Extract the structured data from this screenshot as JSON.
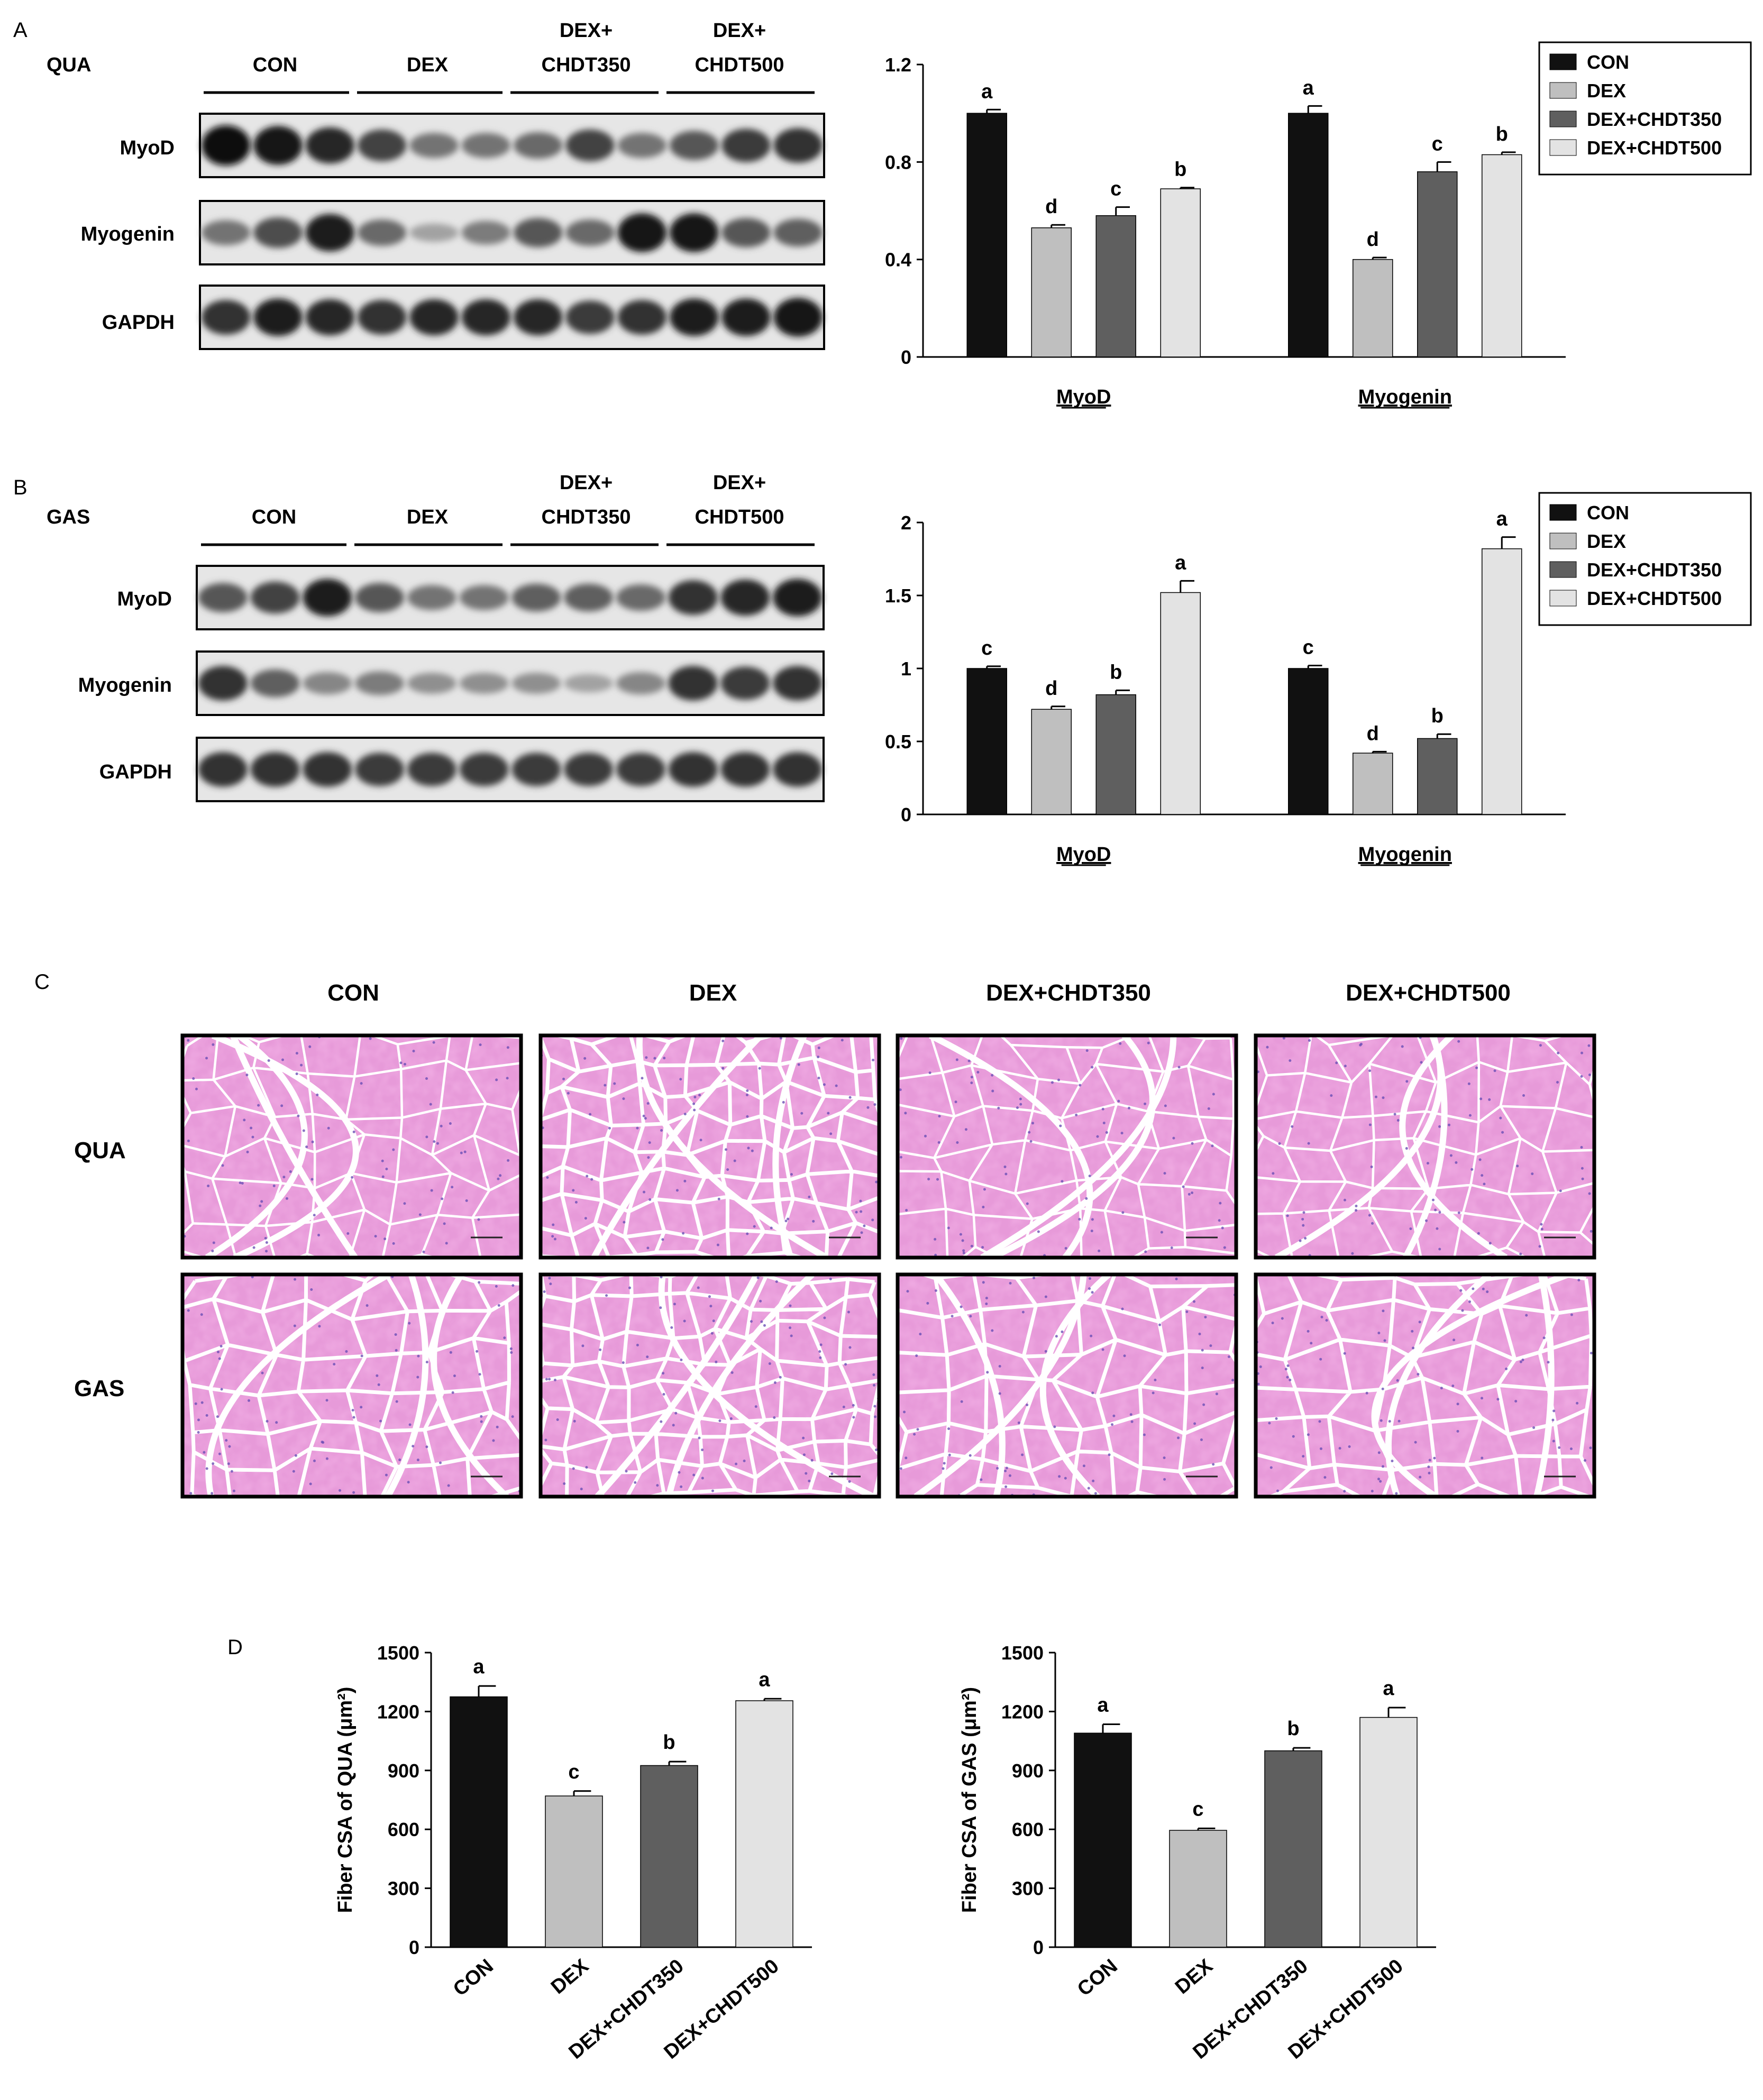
{
  "panels": {
    "A": {
      "letter": "A",
      "tissue": "QUA",
      "groups": [
        {
          "line1": "",
          "line2": "CON"
        },
        {
          "line1": "",
          "line2": "DEX"
        },
        {
          "line1": "DEX+",
          "line2": "CHDT350"
        },
        {
          "line1": "DEX+",
          "line2": "CHDT500"
        }
      ],
      "blots": [
        {
          "label": "MyoD",
          "intensities": [
            1.0,
            0.95,
            0.85,
            0.7,
            0.45,
            0.45,
            0.5,
            0.7,
            0.45,
            0.6,
            0.75,
            0.8
          ]
        },
        {
          "label": "Myogenin",
          "intensities": [
            0.45,
            0.65,
            0.9,
            0.5,
            0.2,
            0.4,
            0.6,
            0.5,
            0.95,
            0.95,
            0.6,
            0.55
          ]
        },
        {
          "label": "GAPDH",
          "intensities": [
            0.8,
            0.9,
            0.85,
            0.8,
            0.85,
            0.85,
            0.85,
            0.75,
            0.8,
            0.9,
            0.9,
            0.95
          ]
        }
      ]
    },
    "B": {
      "letter": "B",
      "tissue": "GAS",
      "groups": [
        {
          "line1": "",
          "line2": "CON"
        },
        {
          "line1": "",
          "line2": "DEX"
        },
        {
          "line1": "DEX+",
          "line2": "CHDT350"
        },
        {
          "line1": "DEX+",
          "line2": "CHDT500"
        }
      ],
      "blots": [
        {
          "label": "MyoD",
          "intensities": [
            0.6,
            0.7,
            0.9,
            0.6,
            0.45,
            0.45,
            0.55,
            0.55,
            0.5,
            0.8,
            0.85,
            0.9
          ]
        },
        {
          "label": "Myogenin",
          "intensities": [
            0.8,
            0.55,
            0.35,
            0.4,
            0.3,
            0.3,
            0.3,
            0.2,
            0.35,
            0.8,
            0.75,
            0.8
          ]
        },
        {
          "label": "GAPDH",
          "intensities": [
            0.8,
            0.8,
            0.8,
            0.75,
            0.75,
            0.75,
            0.75,
            0.75,
            0.75,
            0.8,
            0.8,
            0.8
          ]
        }
      ]
    },
    "C": {
      "letter": "C",
      "columns": [
        "CON",
        "DEX",
        "DEX+CHDT350",
        "DEX+CHDT500"
      ],
      "rows": [
        "QUA",
        "GAS"
      ]
    },
    "D": {
      "letter": "D"
    }
  },
  "legend_series": [
    "CON",
    "DEX",
    "DEX+CHDT350",
    "DEX+CHDT500"
  ],
  "colors": {
    "CON": "#111111",
    "DEX": "#bfbfbf",
    "DEX+CHDT350": "#5f5f5f",
    "DEX+CHDT500": "#e3e3e3",
    "tissue_bg": "#e79ad9",
    "tissue_septa": "#ffffff",
    "nuclei": "#6a4fb5"
  },
  "chart_data": [
    {
      "type": "bar",
      "panel": "A",
      "categories": [
        "MyoD",
        "Myogenin"
      ],
      "ylim": [
        0,
        1.2
      ],
      "yticks": [
        "0",
        "0.4",
        "0.8",
        "1.2"
      ],
      "series": [
        {
          "name": "CON",
          "values": [
            1.0,
            1.0
          ],
          "errors": [
            0.015,
            0.03
          ],
          "letters": [
            "a",
            "a"
          ]
        },
        {
          "name": "DEX",
          "values": [
            0.53,
            0.4
          ],
          "errors": [
            0.012,
            0.008
          ],
          "letters": [
            "d",
            "d"
          ]
        },
        {
          "name": "DEX+CHDT350",
          "values": [
            0.58,
            0.76
          ],
          "errors": [
            0.035,
            0.04
          ],
          "letters": [
            "c",
            "c"
          ]
        },
        {
          "name": "DEX+CHDT500",
          "values": [
            0.69,
            0.83
          ],
          "errors": [
            0.005,
            0.01
          ],
          "letters": [
            "b",
            "b"
          ]
        }
      ]
    },
    {
      "type": "bar",
      "panel": "B",
      "categories": [
        "MyoD",
        "Myogenin"
      ],
      "ylim": [
        0,
        2
      ],
      "yticks": [
        "0",
        "0.5",
        "1",
        "1.5",
        "2"
      ],
      "series": [
        {
          "name": "CON",
          "values": [
            1.0,
            1.0
          ],
          "errors": [
            0.015,
            0.02
          ],
          "letters": [
            "c",
            "c"
          ]
        },
        {
          "name": "DEX",
          "values": [
            0.72,
            0.42
          ],
          "errors": [
            0.02,
            0.01
          ],
          "letters": [
            "d",
            "d"
          ]
        },
        {
          "name": "DEX+CHDT350",
          "values": [
            0.82,
            0.52
          ],
          "errors": [
            0.03,
            0.03
          ],
          "letters": [
            "b",
            "b"
          ]
        },
        {
          "name": "DEX+CHDT500",
          "values": [
            1.52,
            1.82
          ],
          "errors": [
            0.08,
            0.08
          ],
          "letters": [
            "a",
            "a"
          ]
        }
      ]
    },
    {
      "type": "bar",
      "panel": "D",
      "ylabel": "Fiber CSA of QUA (μm²)",
      "categories": [
        "CON",
        "DEX",
        "DEX+CHDT350",
        "DEX+CHDT500"
      ],
      "ylim": [
        0,
        1500
      ],
      "yticks": [
        "0",
        "300",
        "600",
        "900",
        "1200",
        "1500"
      ],
      "values": [
        1275,
        770,
        925,
        1255
      ],
      "errors": [
        55,
        25,
        20,
        10
      ],
      "letters": [
        "a",
        "c",
        "b",
        "a"
      ]
    },
    {
      "type": "bar",
      "panel": "D",
      "ylabel": "Fiber CSA of GAS (μm²)",
      "categories": [
        "CON",
        "DEX",
        "DEX+CHDT350",
        "DEX+CHDT500"
      ],
      "ylim": [
        0,
        1500
      ],
      "yticks": [
        "0",
        "300",
        "600",
        "900",
        "1200",
        "1500"
      ],
      "values": [
        1090,
        595,
        1000,
        1170
      ],
      "errors": [
        45,
        10,
        15,
        50
      ],
      "letters": [
        "a",
        "c",
        "b",
        "a"
      ]
    }
  ]
}
